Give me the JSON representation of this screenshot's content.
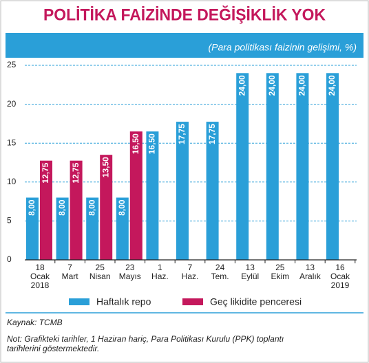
{
  "chart_data": {
    "type": "bar",
    "title": "POLİTİKA FAİZİNDE DEĞİŞİKLİK YOK",
    "subtitle": "(Para politikası faizinin gelişimi, %)",
    "categories": [
      "18 Ocak 2018",
      "7 Mart",
      "25 Nisan",
      "23 Mayıs",
      "1 Haz.",
      "7 Haz.",
      "24 Tem.",
      "13 Eylül",
      "25 Ekim",
      "13 Aralık",
      "16 Ocak 2019"
    ],
    "series": [
      {
        "name": "Haftalık repo",
        "color": "#2a9fd8",
        "values": [
          8,
          8,
          8,
          8,
          16.5,
          17.75,
          17.75,
          24,
          24,
          24,
          24
        ],
        "value_labels": [
          "8,00",
          "8,00",
          "8,00",
          "8,00",
          "16,50",
          "17,75",
          "17,75",
          "24,00",
          "24,00",
          "24,00",
          "24,00"
        ]
      },
      {
        "name": "Geç likidite penceresi",
        "color": "#c4185c",
        "values": [
          12.75,
          12.75,
          13.5,
          16.5,
          null,
          null,
          null,
          null,
          null,
          null,
          null
        ],
        "value_labels": [
          "12,75",
          "12,75",
          "13,50",
          "16,50",
          null,
          null,
          null,
          null,
          null,
          null,
          null
        ]
      }
    ],
    "ylim": [
      0,
      25
    ],
    "yticks": [
      0,
      5,
      10,
      15,
      20,
      25
    ],
    "grid": true,
    "source": "Kaynak: TCMB",
    "note": [
      "Not: Grafikteki tarihler, 1 Haziran hariç, Para Politikası Kurulu (PPK) toplantı",
      "tarihlerini göstermektedir."
    ]
  }
}
